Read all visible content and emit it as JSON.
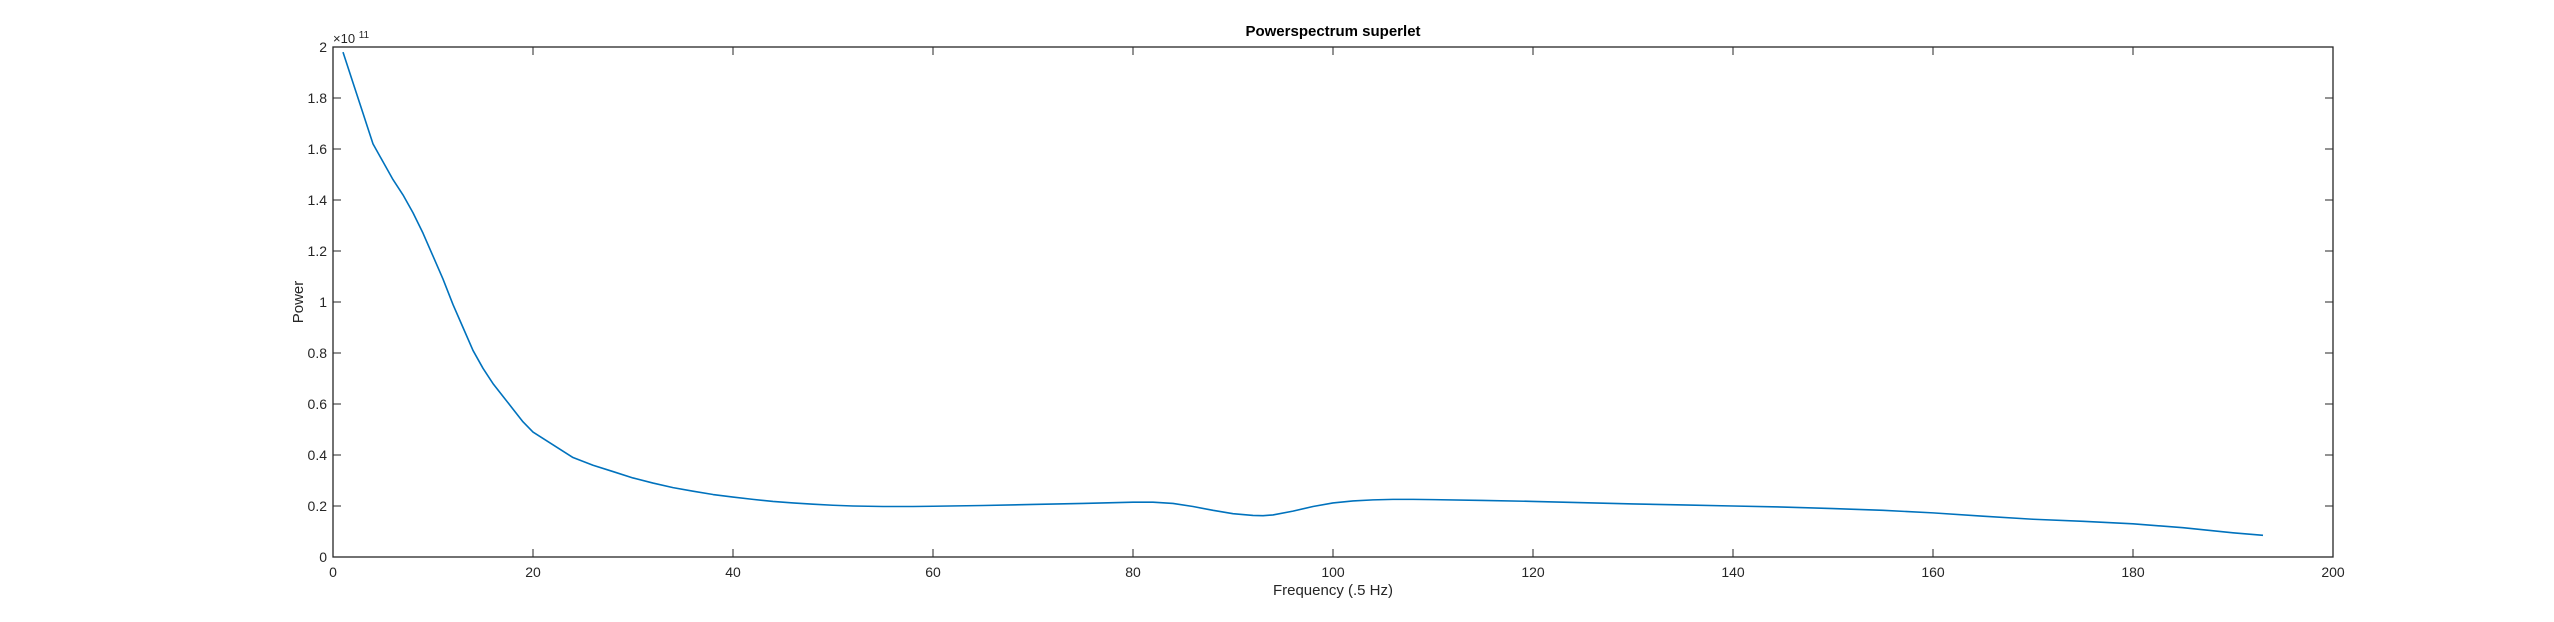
{
  "chart_data": {
    "type": "line",
    "title": "Powerspectrum superlet",
    "xlabel": "Frequency (.5 Hz)",
    "ylabel": "Power",
    "y_exponent_base": "×10",
    "y_exponent": "11",
    "xlim": [
      0,
      200
    ],
    "ylim": [
      0,
      2
    ],
    "xticks": [
      0,
      20,
      40,
      60,
      80,
      100,
      120,
      140,
      160,
      180,
      200
    ],
    "yticks": [
      0,
      0.2,
      0.4,
      0.6,
      0.8,
      1,
      1.2,
      1.4,
      1.6,
      1.8,
      2
    ],
    "ytick_labels": [
      "0",
      "0.2",
      "0.4",
      "0.6",
      "0.8",
      "1",
      "1.2",
      "1.4",
      "1.6",
      "1.8",
      "2"
    ],
    "grid": false,
    "box": true,
    "series": [
      {
        "color": "#0072bd",
        "x": [
          1,
          2,
          3,
          4,
          5,
          6,
          7,
          8,
          9,
          10,
          11,
          12,
          13,
          14,
          15,
          16,
          17,
          18,
          19,
          20,
          22,
          24,
          26,
          28,
          30,
          32,
          34,
          36,
          38,
          40,
          42,
          44,
          46,
          48,
          50,
          52,
          55,
          58,
          60,
          65,
          70,
          75,
          80,
          82,
          84,
          86,
          88,
          90,
          92,
          93,
          94,
          96,
          98,
          100,
          102,
          104,
          106,
          108,
          110,
          115,
          120,
          125,
          130,
          135,
          140,
          145,
          150,
          155,
          160,
          165,
          170,
          175,
          180,
          185,
          190,
          193
        ],
        "y": [
          1.98,
          1.86,
          1.74,
          1.62,
          1.55,
          1.48,
          1.42,
          1.35,
          1.27,
          1.18,
          1.09,
          0.99,
          0.9,
          0.81,
          0.74,
          0.68,
          0.63,
          0.58,
          0.53,
          0.49,
          0.44,
          0.39,
          0.36,
          0.335,
          0.31,
          0.29,
          0.272,
          0.258,
          0.245,
          0.235,
          0.226,
          0.218,
          0.212,
          0.207,
          0.203,
          0.2,
          0.198,
          0.198,
          0.199,
          0.202,
          0.206,
          0.21,
          0.215,
          0.215,
          0.21,
          0.198,
          0.183,
          0.17,
          0.163,
          0.162,
          0.165,
          0.18,
          0.198,
          0.212,
          0.22,
          0.224,
          0.226,
          0.226,
          0.225,
          0.222,
          0.218,
          0.213,
          0.208,
          0.204,
          0.2,
          0.196,
          0.19,
          0.183,
          0.173,
          0.16,
          0.148,
          0.14,
          0.13,
          0.115,
          0.095,
          0.085
        ]
      }
    ]
  }
}
